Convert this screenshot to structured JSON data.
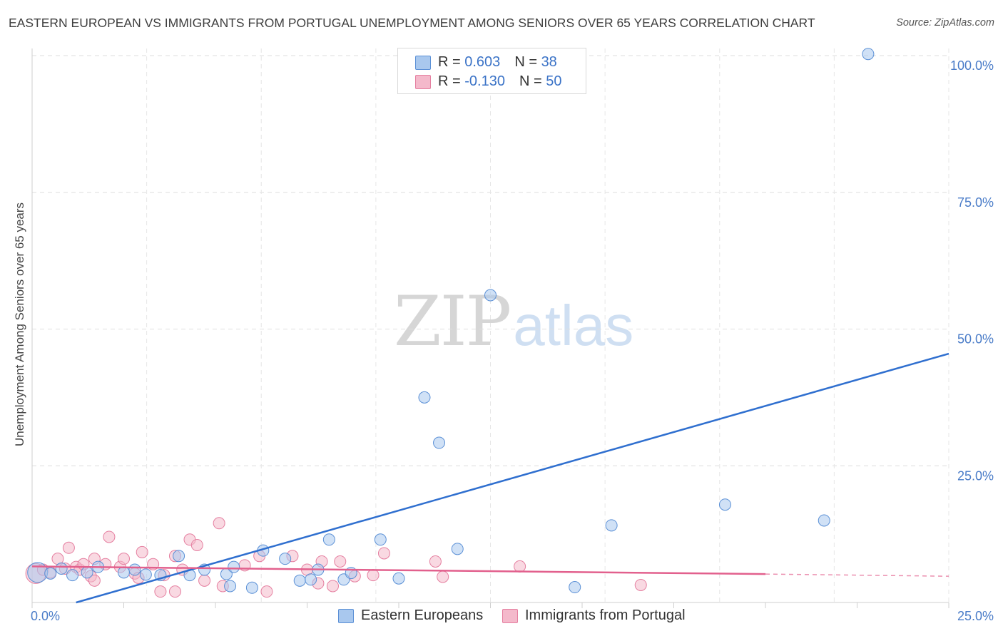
{
  "title": "EASTERN EUROPEAN VS IMMIGRANTS FROM PORTUGAL UNEMPLOYMENT AMONG SENIORS OVER 65 YEARS CORRELATION CHART",
  "source": "Source: ZipAtlas.com",
  "watermark": {
    "zip": "ZIP",
    "atlas": "atlas"
  },
  "legend": {
    "rows": [
      {
        "r_label": "R = ",
        "r_value": "0.603",
        "n_label": "N = ",
        "n_value": "38"
      },
      {
        "r_label": "R = ",
        "r_value": "-0.130",
        "n_label": "N = ",
        "n_value": "50"
      }
    ]
  },
  "colors": {
    "blue_fill": "#a9c8ee",
    "blue_stroke": "#5b90d6",
    "blue_line": "#2f6fcf",
    "pink_fill": "#f4b9cb",
    "pink_stroke": "#e57fa0",
    "pink_line": "#e2608d"
  },
  "chart_data": {
    "type": "scatter",
    "title": "EASTERN EUROPEAN VS IMMIGRANTS FROM PORTUGAL UNEMPLOYMENT AMONG SENIORS OVER 65 YEARS CORRELATION CHART",
    "xlabel": "",
    "ylabel": "Unemployment Among Seniors over 65 years",
    "xlim": [
      0,
      25
    ],
    "ylim": [
      0,
      100
    ],
    "x_tick_labels": [
      "0.0%",
      "25.0%"
    ],
    "y_ticks": [
      25,
      50,
      75,
      100
    ],
    "y_tick_labels": [
      "25.0%",
      "50.0%",
      "75.0%",
      "100.0%"
    ],
    "grid": true,
    "series": [
      {
        "name": "Eastern Europeans",
        "color": "#5b90d6",
        "trend": {
          "x": [
            1.2,
            25
          ],
          "y": [
            0,
            45.5
          ]
        },
        "points": [
          {
            "x": 0.15,
            "y": 5.5,
            "big": true
          },
          {
            "x": 0.5,
            "y": 5.3
          },
          {
            "x": 0.8,
            "y": 6.2
          },
          {
            "x": 1.1,
            "y": 5.0
          },
          {
            "x": 1.5,
            "y": 5.5
          },
          {
            "x": 1.8,
            "y": 6.5
          },
          {
            "x": 2.5,
            "y": 5.5
          },
          {
            "x": 2.8,
            "y": 6.0
          },
          {
            "x": 3.1,
            "y": 5.1
          },
          {
            "x": 3.5,
            "y": 5.0
          },
          {
            "x": 4.0,
            "y": 8.5
          },
          {
            "x": 4.3,
            "y": 5.0
          },
          {
            "x": 4.7,
            "y": 6.0
          },
          {
            "x": 5.3,
            "y": 5.2
          },
          {
            "x": 5.4,
            "y": 3.0
          },
          {
            "x": 5.5,
            "y": 6.5
          },
          {
            "x": 6.0,
            "y": 2.7
          },
          {
            "x": 6.3,
            "y": 9.5
          },
          {
            "x": 6.9,
            "y": 8.0
          },
          {
            "x": 7.3,
            "y": 4.0
          },
          {
            "x": 7.6,
            "y": 4.2
          },
          {
            "x": 7.8,
            "y": 6.0
          },
          {
            "x": 8.1,
            "y": 11.5
          },
          {
            "x": 8.5,
            "y": 4.2
          },
          {
            "x": 8.7,
            "y": 5.4
          },
          {
            "x": 9.5,
            "y": 11.5
          },
          {
            "x": 10.0,
            "y": 4.4
          },
          {
            "x": 10.7,
            "y": 37.5
          },
          {
            "x": 11.1,
            "y": 29.2
          },
          {
            "x": 11.6,
            "y": 9.8
          },
          {
            "x": 12.5,
            "y": 56.2
          },
          {
            "x": 14.8,
            "y": 2.8
          },
          {
            "x": 15.8,
            "y": 14.1
          },
          {
            "x": 18.9,
            "y": 17.9
          },
          {
            "x": 21.6,
            "y": 15.0
          },
          {
            "x": 22.8,
            "y": 100.3
          }
        ]
      },
      {
        "name": "Immigrants from Portugal",
        "color": "#e57fa0",
        "trend": {
          "x": [
            0,
            20
          ],
          "y": [
            6.6,
            5.2
          ]
        },
        "trend_ext": {
          "x": [
            20,
            25
          ],
          "y": [
            5.2,
            4.8
          ]
        },
        "points": [
          {
            "x": 0.1,
            "y": 5.3,
            "big": true
          },
          {
            "x": 0.3,
            "y": 6.0
          },
          {
            "x": 0.5,
            "y": 5.5
          },
          {
            "x": 0.7,
            "y": 8.0
          },
          {
            "x": 0.9,
            "y": 6.2
          },
          {
            "x": 1.0,
            "y": 10.0
          },
          {
            "x": 1.2,
            "y": 6.5
          },
          {
            "x": 1.3,
            "y": 6.0
          },
          {
            "x": 1.4,
            "y": 7.0
          },
          {
            "x": 1.6,
            "y": 4.8
          },
          {
            "x": 1.7,
            "y": 4.0
          },
          {
            "x": 1.7,
            "y": 8.0
          },
          {
            "x": 2.0,
            "y": 7.0
          },
          {
            "x": 2.1,
            "y": 12.0
          },
          {
            "x": 2.4,
            "y": 6.5
          },
          {
            "x": 2.5,
            "y": 8.0
          },
          {
            "x": 2.8,
            "y": 5.3
          },
          {
            "x": 2.9,
            "y": 4.5
          },
          {
            "x": 3.0,
            "y": 9.2
          },
          {
            "x": 3.3,
            "y": 7.0
          },
          {
            "x": 3.5,
            "y": 2.0
          },
          {
            "x": 3.6,
            "y": 5.0
          },
          {
            "x": 3.9,
            "y": 2.0
          },
          {
            "x": 3.9,
            "y": 8.5
          },
          {
            "x": 4.1,
            "y": 6.0
          },
          {
            "x": 4.3,
            "y": 11.5
          },
          {
            "x": 4.5,
            "y": 10.5
          },
          {
            "x": 4.7,
            "y": 4.0
          },
          {
            "x": 5.1,
            "y": 14.5
          },
          {
            "x": 5.2,
            "y": 3.0
          },
          {
            "x": 5.8,
            "y": 6.8
          },
          {
            "x": 6.2,
            "y": 8.5
          },
          {
            "x": 6.4,
            "y": 2.0
          },
          {
            "x": 7.1,
            "y": 8.5
          },
          {
            "x": 7.5,
            "y": 6.0
          },
          {
            "x": 7.8,
            "y": 3.5
          },
          {
            "x": 7.9,
            "y": 7.5
          },
          {
            "x": 8.2,
            "y": 3.0
          },
          {
            "x": 8.4,
            "y": 7.5
          },
          {
            "x": 8.8,
            "y": 4.8
          },
          {
            "x": 9.3,
            "y": 5.0
          },
          {
            "x": 9.6,
            "y": 9.0
          },
          {
            "x": 11.0,
            "y": 7.5
          },
          {
            "x": 11.2,
            "y": 4.7
          },
          {
            "x": 13.3,
            "y": 6.6
          },
          {
            "x": 16.6,
            "y": 3.2
          }
        ]
      }
    ]
  },
  "bottom_legend": [
    {
      "label": "Eastern Europeans"
    },
    {
      "label": "Immigrants from Portugal"
    }
  ]
}
